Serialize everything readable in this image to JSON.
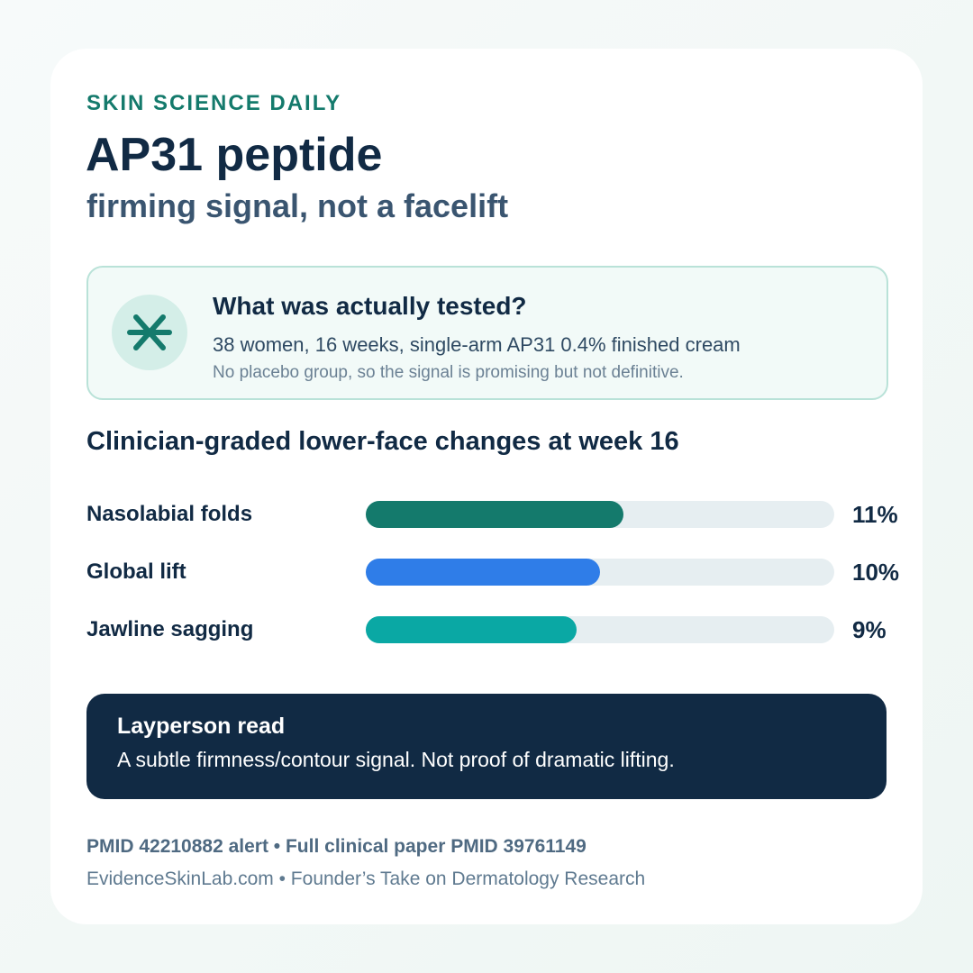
{
  "header": {
    "brand": "SKIN SCIENCE DAILY",
    "title": "AP31 peptide",
    "subtitle": "firming signal, not a facelift"
  },
  "info": {
    "question": "What was actually tested?",
    "detail": "38 women, 16 weeks, single-arm AP31 0.4% finished cream",
    "note": "No placebo group, so the signal is promising but not definitive."
  },
  "chart_data": {
    "type": "bar",
    "orientation": "horizontal",
    "title": "Clinician-graded lower-face changes at week 16",
    "categories": [
      "Nasolabial folds",
      "Global lift",
      "Jawline sagging"
    ],
    "values": [
      11,
      10,
      9
    ],
    "value_labels": [
      "11%",
      "10%",
      "9%"
    ],
    "colors": [
      "#147a6c",
      "#2f7de8",
      "#0aa8a4"
    ],
    "xlim": [
      0,
      20
    ]
  },
  "callout": {
    "heading": "Layperson read",
    "text": "A subtle firmness/contour signal. Not proof of dramatic lifting."
  },
  "footer": {
    "line1": "PMID 42210882 alert • Full clinical paper PMID 39761149",
    "line2": "EvidenceSkinLab.com • Founder’s Take on Dermatology Research"
  }
}
